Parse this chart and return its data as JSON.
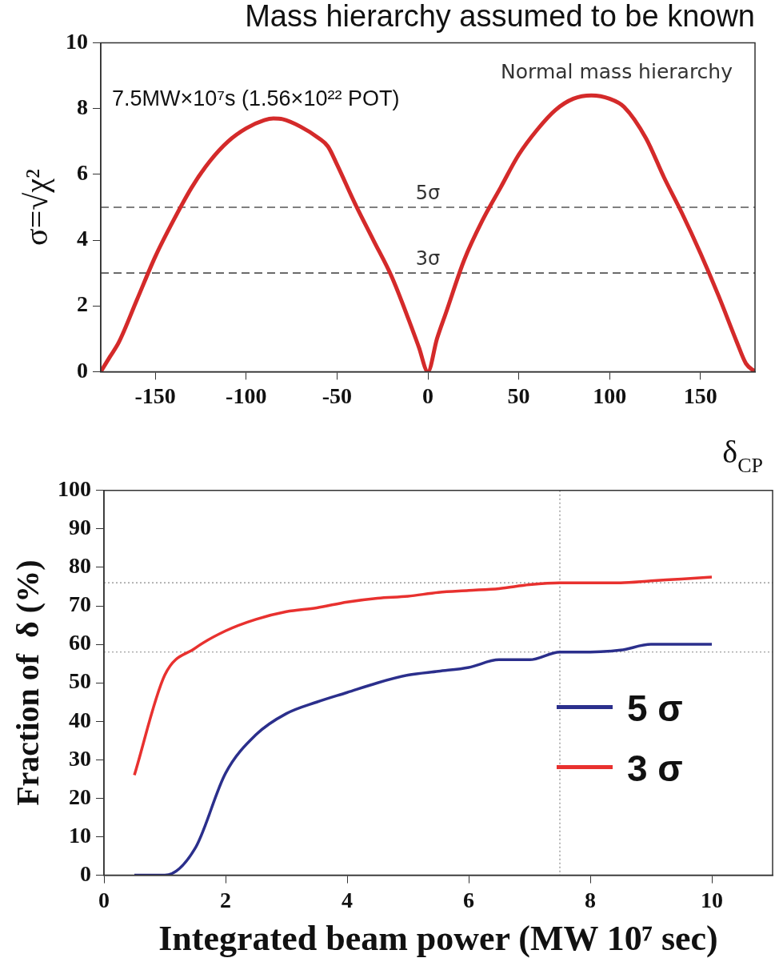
{
  "chart_data": [
    {
      "type": "line",
      "title": "Mass hierarchy assumed to be known",
      "xlabel": "δ$_{CP}$",
      "ylabel": "σ=√χ²",
      "annotations": [
        "Normal mass hierarchy",
        "7.5MW×10⁷s (1.56×10²² POT)"
      ],
      "x": [
        -180,
        -175,
        -170,
        -160,
        -150,
        -140,
        -130,
        -120,
        -110,
        -100,
        -90,
        -85,
        -80,
        -70,
        -60,
        -55,
        -50,
        -40,
        -30,
        -20,
        -10,
        -5,
        0,
        5,
        10,
        20,
        30,
        40,
        50,
        60,
        70,
        80,
        90,
        100,
        108,
        120,
        130,
        140,
        150,
        160,
        170,
        175,
        180
      ],
      "values": [
        0,
        0.45,
        0.9,
        2.2,
        3.5,
        4.6,
        5.6,
        6.4,
        7.0,
        7.4,
        7.65,
        7.7,
        7.68,
        7.45,
        7.1,
        6.85,
        6.3,
        5.1,
        4.0,
        2.9,
        1.5,
        0.75,
        0,
        1.0,
        1.8,
        3.4,
        4.6,
        5.6,
        6.6,
        7.35,
        7.95,
        8.3,
        8.4,
        8.3,
        8.05,
        7.1,
        5.9,
        4.8,
        3.6,
        2.3,
        0.9,
        0.25,
        0
      ],
      "color": "#d42a2a",
      "xlim": [
        -180,
        180
      ],
      "xticks": [
        -150,
        -100,
        -50,
        0,
        50,
        100,
        150
      ],
      "ylim": [
        0,
        10
      ],
      "yticks": [
        0,
        2,
        4,
        6,
        8,
        10
      ],
      "ref_lines": [
        {
          "axis": "y",
          "value": 5,
          "label": "5σ",
          "line_style": "dashed",
          "color": "#555555"
        },
        {
          "axis": "y",
          "value": 3,
          "label": "3σ",
          "line_style": "dashed",
          "color": "#555555"
        }
      ],
      "grid": false,
      "legend": false,
      "marker": "none"
    },
    {
      "type": "line",
      "xlabel": "Integrated beam power (MW 10⁷ sec)",
      "ylabel": "Fraction of  δ (%)",
      "x": [
        0.5,
        1,
        1.5,
        2,
        2.5,
        3,
        3.5,
        4,
        4.5,
        5,
        5.5,
        6,
        6.5,
        7,
        7.5,
        8,
        8.5,
        9,
        9.5,
        10
      ],
      "series": [
        {
          "name": "5 σ",
          "color": "#2b2f8c",
          "values": [
            0,
            0,
            7,
            26.5,
            36.5,
            42,
            45,
            47.5,
            50,
            52,
            53,
            54,
            56,
            56,
            58,
            58,
            58.5,
            60,
            60,
            60
          ]
        },
        {
          "name": "3 σ",
          "color": "#e8312f",
          "values": [
            26,
            52,
            59,
            63.5,
            66.5,
            68.5,
            69.5,
            71,
            72,
            72.5,
            73.5,
            74,
            74.5,
            75.5,
            76,
            76,
            76,
            76.5,
            77,
            77.5
          ]
        }
      ],
      "xlim": [
        0,
        11
      ],
      "xticks": [
        0,
        2,
        4,
        6,
        8,
        10
      ],
      "ylim": [
        0,
        100
      ],
      "yticks": [
        0,
        10,
        20,
        30,
        40,
        50,
        60,
        70,
        80,
        90,
        100
      ],
      "ref_lines": [
        {
          "axis": "y",
          "value": 76,
          "line_style": "dotted",
          "color": "#888888"
        },
        {
          "axis": "y",
          "value": 58,
          "line_style": "dotted",
          "color": "#888888"
        },
        {
          "axis": "x",
          "value": 7.5,
          "line_style": "dotted",
          "color": "#888888"
        }
      ],
      "grid": false,
      "legend": "bottom right",
      "marker": "none"
    }
  ]
}
